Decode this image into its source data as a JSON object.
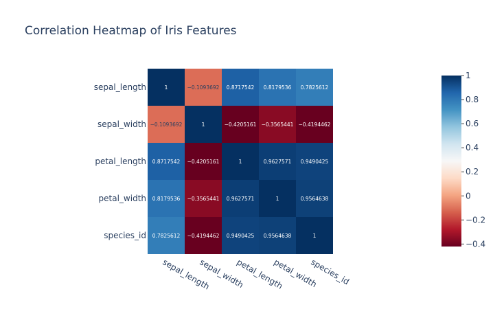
{
  "chart_data": {
    "type": "heatmap",
    "title": "Correlation Heatmap of Iris Features",
    "x_categories": [
      "sepal_length",
      "sepal_width",
      "petal_length",
      "petal_width",
      "species_id"
    ],
    "y_categories": [
      "sepal_length",
      "sepal_width",
      "petal_length",
      "petal_width",
      "species_id"
    ],
    "z": [
      [
        1,
        -0.1093692,
        0.8717542,
        0.8179536,
        0.7825612
      ],
      [
        -0.1093692,
        1,
        -0.4205161,
        -0.3565441,
        -0.4194462
      ],
      [
        0.8717542,
        -0.4205161,
        1,
        0.9627571,
        0.9490425
      ],
      [
        0.8179536,
        -0.3565441,
        0.9627571,
        1,
        0.9564638
      ],
      [
        0.7825612,
        -0.4194462,
        0.9490425,
        0.9564638,
        1
      ]
    ],
    "z_labels": [
      [
        "1",
        "−0.1093692",
        "0.8717542",
        "0.8179536",
        "0.7825612"
      ],
      [
        "−0.1093692",
        "1",
        "−0.4205161",
        "−0.3565441",
        "−0.4194462"
      ],
      [
        "0.8717542",
        "−0.4205161",
        "1",
        "0.9627571",
        "0.9490425"
      ],
      [
        "0.8179536",
        "−0.3565441",
        "0.9627571",
        "1",
        "0.9564638"
      ],
      [
        "0.7825612",
        "−0.4194462",
        "0.9490425",
        "0.9564638",
        "1"
      ]
    ],
    "colorscale": "RdBu",
    "zmin": -0.4205161,
    "zmax": 1,
    "colorbar_ticks": [
      {
        "value": 1,
        "label": "1"
      },
      {
        "value": 0.8,
        "label": "0.8"
      },
      {
        "value": 0.6,
        "label": "0.6"
      },
      {
        "value": 0.4,
        "label": "0.4"
      },
      {
        "value": 0.2,
        "label": "0.2"
      },
      {
        "value": 0,
        "label": "0"
      },
      {
        "value": -0.2,
        "label": "−0.2"
      },
      {
        "value": -0.4,
        "label": "−0.4"
      }
    ],
    "colors": {
      "stops": [
        "#67001f",
        "#b2182b",
        "#d6604d",
        "#f4a582",
        "#fddbc7",
        "#f7f7f7",
        "#d1e5f0",
        "#92c5de",
        "#4393c3",
        "#2166ac",
        "#053061"
      ],
      "text": "#2a3f5f"
    }
  }
}
